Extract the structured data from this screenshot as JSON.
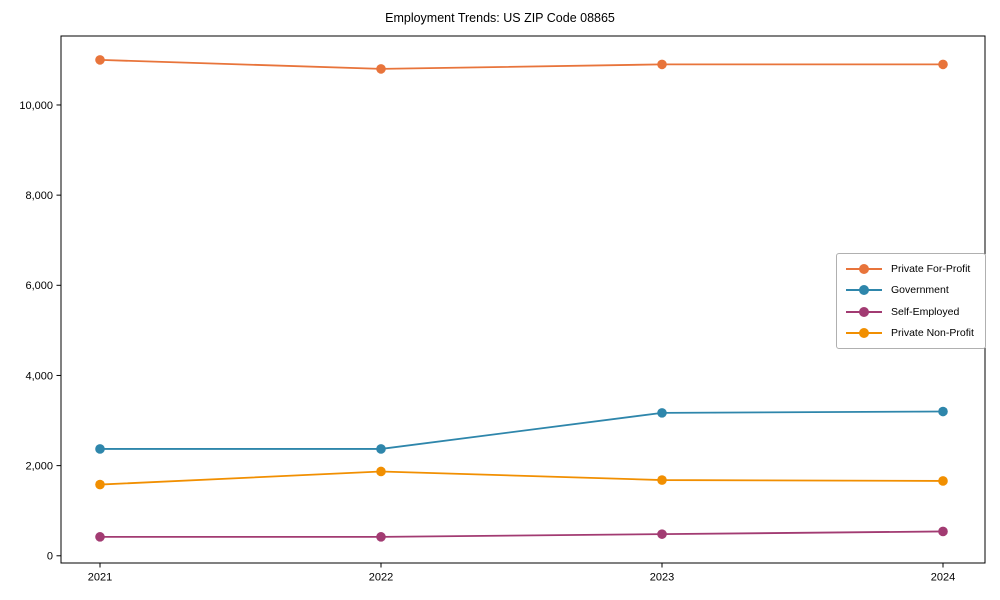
{
  "chart_data": {
    "type": "line",
    "title": "Employment Trends: US ZIP Code 08865",
    "categories": [
      "2021",
      "2022",
      "2023",
      "2024"
    ],
    "series": [
      {
        "name": "Private For-Profit",
        "color": "#e8743b",
        "values": [
          11000,
          10800,
          10900,
          10900
        ]
      },
      {
        "name": "Government",
        "color": "#2e86ab",
        "values": [
          2370,
          2370,
          3170,
          3200
        ]
      },
      {
        "name": "Self-Employed",
        "color": "#a23b72",
        "values": [
          420,
          420,
          480,
          540
        ]
      },
      {
        "name": "Private Non-Profit",
        "color": "#f18f01",
        "values": [
          1580,
          1870,
          1680,
          1660
        ]
      }
    ],
    "xlabel": "",
    "ylabel": "",
    "y_ticks": [
      0,
      2000,
      4000,
      6000,
      8000,
      10000
    ],
    "y_tick_labels": [
      "0",
      "2,000",
      "4,000",
      "6,000",
      "8,000",
      "10,000"
    ],
    "ylim": [
      -160,
      11530
    ],
    "grid": false,
    "legend_position": "center-right",
    "marker": "circle",
    "axis_color": "#000000",
    "text_color": "#000000"
  }
}
